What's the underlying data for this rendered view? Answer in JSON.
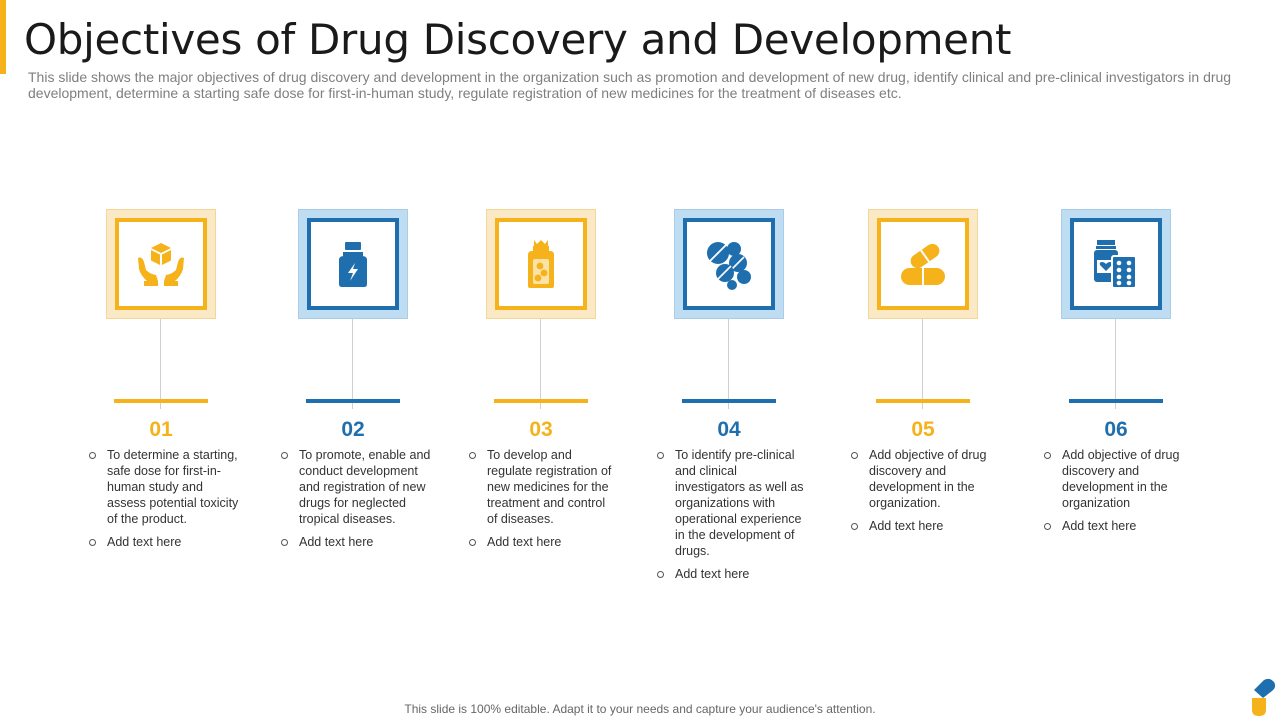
{
  "slide": {
    "title": "Objectives of Drug Discovery and Development",
    "subtitle": "This slide shows the major objectives of drug discovery and development in the organization such as promotion and development of new drug, identify clinical and pre-clinical investigators in drug development, determine a starting safe dose for first-in-human study, regulate registration of new medicines for the treatment of diseases etc.",
    "footer": "This slide is 100% editable. Adapt it to your needs and capture your audience's attention."
  },
  "colors": {
    "yellow": "#F5B21A",
    "blue": "#1F6FAE"
  },
  "objectives": [
    {
      "number": "01",
      "icon": "hands-box-icon",
      "text": "To determine a starting, safe dose for first-in-human study and assess potential toxicity of the product.",
      "extra": "Add text here"
    },
    {
      "number": "02",
      "icon": "medicine-bottle-icon",
      "text": "To promote, enable and conduct development and registration of new drugs for neglected tropical diseases.",
      "extra": "Add text here"
    },
    {
      "number": "03",
      "icon": "pill-bottle-icon",
      "text": "To develop and regulate registration of new medicines for the treatment and control of diseases.",
      "extra": "Add text here"
    },
    {
      "number": "04",
      "icon": "tablets-icon",
      "text": "To identify pre-clinical and clinical investigators as well as organizations with operational experience in the development of drugs.",
      "extra": "Add text here"
    },
    {
      "number": "05",
      "icon": "capsules-icon",
      "text": "Add objective of drug discovery and development in the organization.",
      "extra": "Add text here"
    },
    {
      "number": "06",
      "icon": "medicine-pack-icon",
      "text": "Add objective of drug discovery and development in the organization",
      "extra": "Add text here"
    }
  ]
}
